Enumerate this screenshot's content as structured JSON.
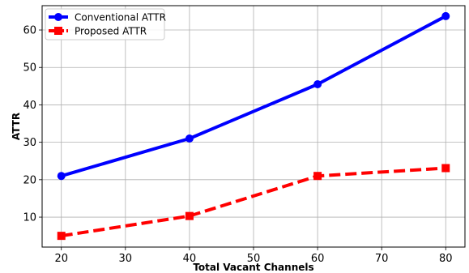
{
  "chart_data": {
    "type": "line",
    "title": "",
    "xlabel": "Total Vacant Channels",
    "ylabel": "ATTR",
    "x": [
      20,
      40,
      60,
      80
    ],
    "xlim": [
      17,
      83
    ],
    "ylim": [
      2,
      66.5
    ],
    "xticks": [
      20,
      30,
      40,
      50,
      60,
      70,
      80
    ],
    "yticks": [
      10,
      20,
      30,
      40,
      50,
      60
    ],
    "grid": true,
    "legend_position": "top-left",
    "series": [
      {
        "name": "Conventional ATTR",
        "values": [
          21,
          31,
          45.5,
          63.7
        ],
        "color": "#0000ff",
        "line_style": "solid",
        "marker": "circle"
      },
      {
        "name": "Proposed ATTR",
        "values": [
          5,
          10.3,
          21,
          23.1
        ],
        "color": "#ff0000",
        "line_style": "dashed",
        "marker": "square"
      }
    ]
  }
}
